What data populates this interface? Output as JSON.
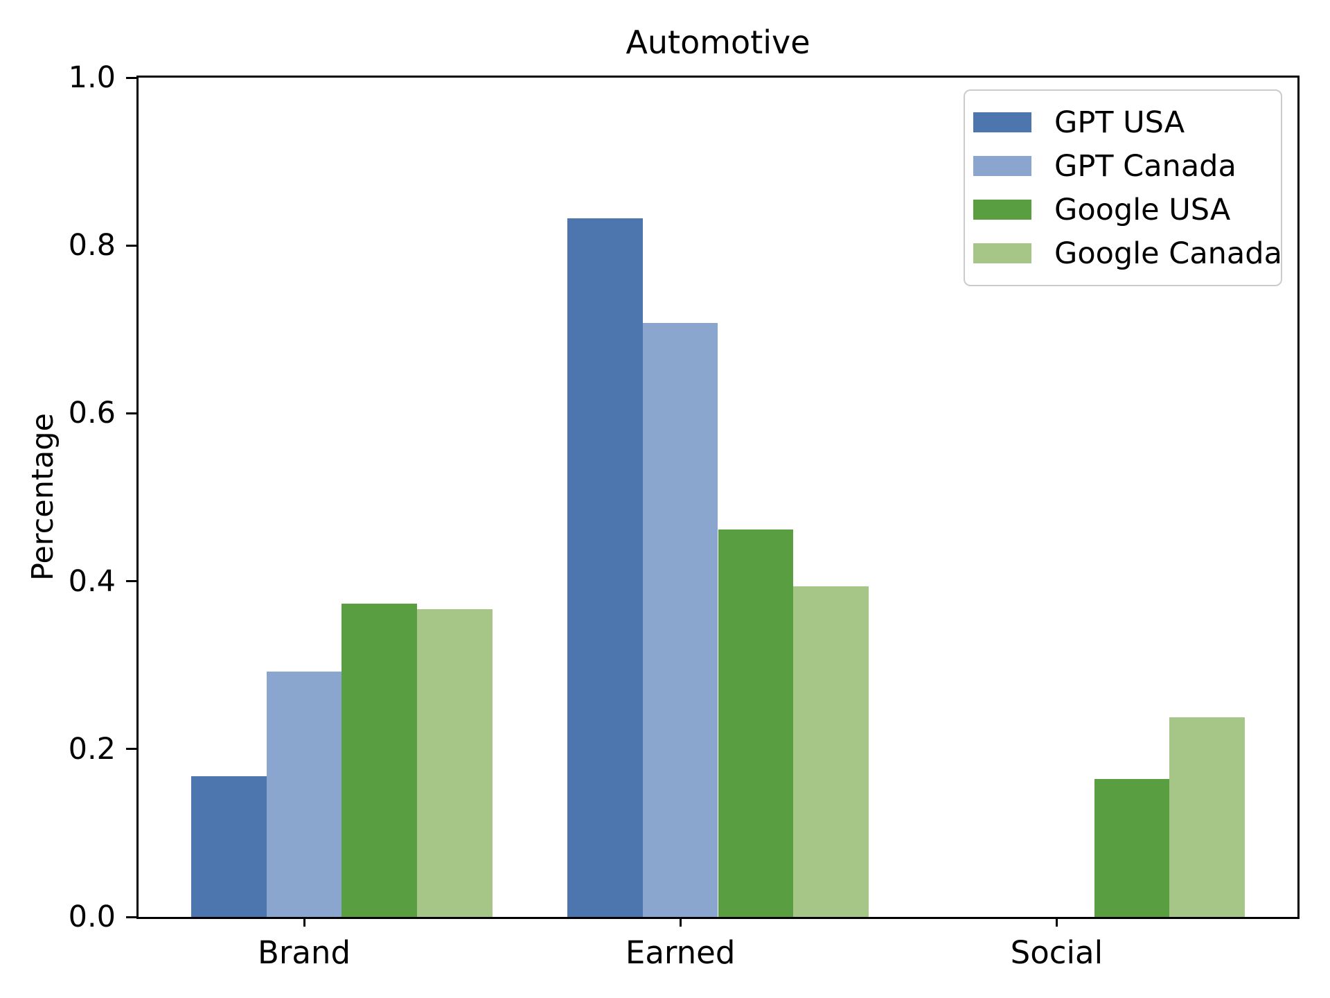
{
  "chart_data": {
    "type": "bar",
    "title": "Automotive",
    "xlabel": "",
    "ylabel": "Percentage",
    "categories": [
      "Brand",
      "Earned",
      "Social"
    ],
    "series": [
      {
        "name": "GPT USA",
        "color": "#4d76ae",
        "values": [
          0.168,
          0.832,
          0.0
        ]
      },
      {
        "name": "GPT Canada",
        "color": "#8aa6ce",
        "values": [
          0.292,
          0.708,
          0.0
        ]
      },
      {
        "name": "Google USA",
        "color": "#5a9e42",
        "values": [
          0.373,
          0.462,
          0.164
        ]
      },
      {
        "name": "Google Canada",
        "color": "#a5c687",
        "values": [
          0.367,
          0.394,
          0.238
        ]
      }
    ],
    "ylim": [
      0.0,
      1.0
    ],
    "yticks": [
      "0.0",
      "0.2",
      "0.4",
      "0.6",
      "0.8",
      "1.0"
    ],
    "bar_width_units": 0.2,
    "legend_position": "upper right",
    "grid": false,
    "axis_color": "#000000",
    "background_color": "#ffffff"
  }
}
